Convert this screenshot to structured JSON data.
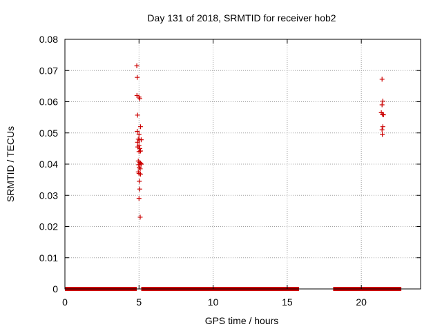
{
  "chart_data": {
    "type": "scatter",
    "title": "Day 131 of 2018, SRMTID for receiver hob2",
    "xlabel": "GPS time / hours",
    "ylabel": "SRMTID / TECUs",
    "xlim": [
      0,
      24
    ],
    "ylim": [
      0,
      0.08
    ],
    "xticks": [
      0,
      5,
      10,
      15,
      20
    ],
    "yticks": [
      0,
      0.01,
      0.02,
      0.03,
      0.04,
      0.05,
      0.06,
      0.07,
      0.08
    ],
    "xtick_labels": [
      "0",
      "5",
      "10",
      "15",
      "20"
    ],
    "ytick_labels": [
      "0",
      "0.01",
      "0.02",
      "0.03",
      "0.04",
      "0.05",
      "0.06",
      "0.07",
      "0.08"
    ],
    "grid": true,
    "marker": "+",
    "color": "#cc0000",
    "series": [
      {
        "name": "SRMTID",
        "points": [
          [
            4.85,
            0.0715
          ],
          [
            4.88,
            0.0678
          ],
          [
            4.86,
            0.062
          ],
          [
            5.0,
            0.0615
          ],
          [
            5.05,
            0.061
          ],
          [
            4.9,
            0.0557
          ],
          [
            5.1,
            0.052
          ],
          [
            4.88,
            0.0505
          ],
          [
            5.0,
            0.0495
          ],
          [
            4.95,
            0.048
          ],
          [
            5.05,
            0.0478
          ],
          [
            5.15,
            0.0478
          ],
          [
            4.9,
            0.047
          ],
          [
            5.0,
            0.046
          ],
          [
            4.92,
            0.0455
          ],
          [
            5.05,
            0.045
          ],
          [
            5.1,
            0.0442
          ],
          [
            5.0,
            0.044
          ],
          [
            4.95,
            0.041
          ],
          [
            5.05,
            0.0405
          ],
          [
            5.1,
            0.0403
          ],
          [
            5.15,
            0.04
          ],
          [
            4.98,
            0.0398
          ],
          [
            5.02,
            0.039
          ],
          [
            5.08,
            0.0385
          ],
          [
            4.95,
            0.0375
          ],
          [
            5.0,
            0.037
          ],
          [
            5.1,
            0.0368
          ],
          [
            5.02,
            0.0345
          ],
          [
            5.05,
            0.032
          ],
          [
            5.0,
            0.029
          ],
          [
            5.08,
            0.023
          ],
          [
            21.4,
            0.0672
          ],
          [
            21.45,
            0.0602
          ],
          [
            21.4,
            0.059
          ],
          [
            21.35,
            0.0565
          ],
          [
            21.42,
            0.056
          ],
          [
            21.5,
            0.0558
          ],
          [
            21.45,
            0.052
          ],
          [
            21.4,
            0.051
          ],
          [
            21.42,
            0.0495
          ]
        ]
      }
    ],
    "zero_segments": [
      [
        0,
        4.85
      ],
      [
        5.15,
        15.8
      ],
      [
        18.1,
        22.7
      ]
    ]
  }
}
